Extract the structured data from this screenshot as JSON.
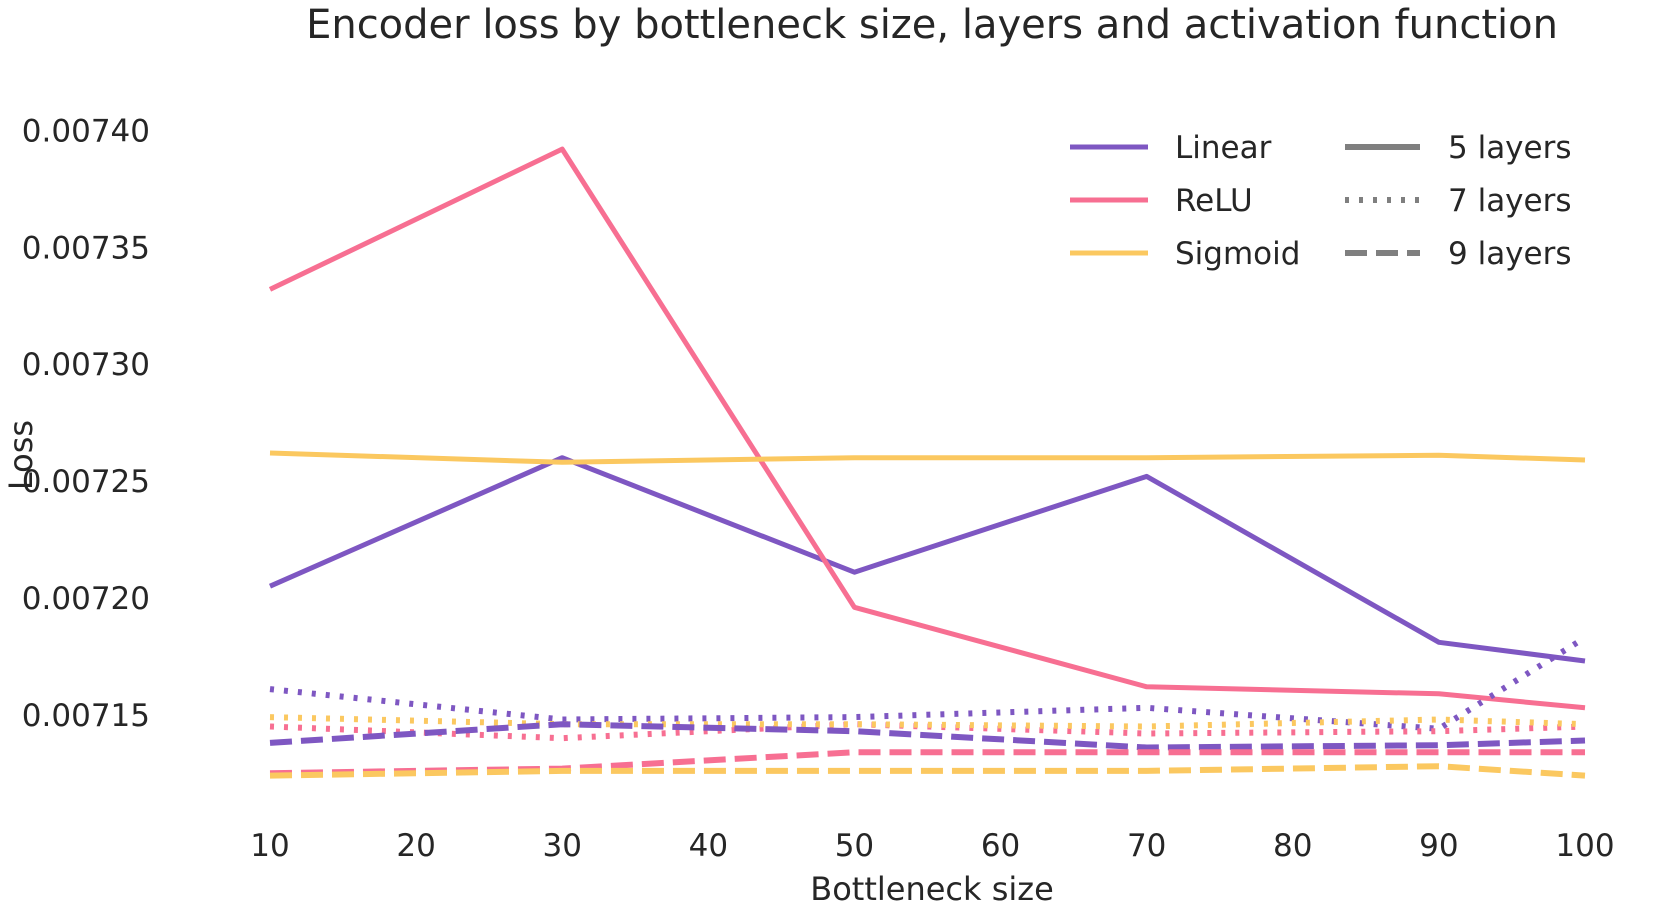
{
  "chart_data": {
    "type": "line",
    "title": "Encoder loss by bottleneck size, layers and activation function",
    "xlabel": "Bottleneck size",
    "ylabel": "Loss",
    "x": [
      10,
      30,
      50,
      70,
      90,
      100
    ],
    "xticks": [
      10,
      20,
      30,
      40,
      50,
      60,
      70,
      80,
      90,
      100
    ],
    "xlim": [
      10,
      100
    ],
    "yticks": [
      0.00715,
      0.0072,
      0.00725,
      0.0073,
      0.00735,
      0.0074
    ],
    "ytick_labels": [
      "0.00715",
      "0.00720",
      "0.00725",
      "0.00730",
      "0.00735",
      "0.00740"
    ],
    "ylim": [
      0.007105,
      0.007413
    ],
    "grid": false,
    "legend_position": "top-right",
    "activation_legend": [
      {
        "label": "Linear",
        "color": "#7e57c2"
      },
      {
        "label": "ReLU",
        "color": "#f76f92"
      },
      {
        "label": "Sigmoid",
        "color": "#fbc860"
      }
    ],
    "layers_legend": [
      {
        "label": "5 layers",
        "style": "solid"
      },
      {
        "label": "7 layers",
        "style": "dotted"
      },
      {
        "label": "9 layers",
        "style": "dashed"
      }
    ],
    "series": [
      {
        "activation": "Linear",
        "layers": "5 layers",
        "color": "#7e57c2",
        "style": "solid",
        "values": [
          0.007205,
          0.00726,
          0.007211,
          0.007252,
          0.007181,
          0.007173
        ]
      },
      {
        "activation": "ReLU",
        "layers": "5 layers",
        "color": "#f76f92",
        "style": "solid",
        "values": [
          0.007332,
          0.007392,
          0.007196,
          0.007162,
          0.007159,
          0.007153
        ]
      },
      {
        "activation": "Sigmoid",
        "layers": "5 layers",
        "color": "#fbc860",
        "style": "solid",
        "values": [
          0.007262,
          0.007258,
          0.00726,
          0.00726,
          0.007261,
          0.007259
        ]
      },
      {
        "activation": "Linear",
        "layers": "7 layers",
        "color": "#7e57c2",
        "style": "dotted",
        "values": [
          0.007161,
          0.007148,
          0.007149,
          0.007153,
          0.007144,
          0.007183
        ]
      },
      {
        "activation": "ReLU",
        "layers": "7 layers",
        "color": "#f76f92",
        "style": "dotted",
        "values": [
          0.007145,
          0.00714,
          0.007146,
          0.007142,
          0.007143,
          0.007145
        ]
      },
      {
        "activation": "Sigmoid",
        "layers": "7 layers",
        "color": "#fbc860",
        "style": "dotted",
        "values": [
          0.007149,
          0.007146,
          0.007146,
          0.007145,
          0.007148,
          0.007146
        ]
      },
      {
        "activation": "Linear",
        "layers": "9 layers",
        "color": "#7e57c2",
        "style": "dashed",
        "values": [
          0.007138,
          0.007146,
          0.007143,
          0.007136,
          0.007137,
          0.007139
        ]
      },
      {
        "activation": "ReLU",
        "layers": "9 layers",
        "color": "#f76f92",
        "style": "dashed",
        "values": [
          0.007125,
          0.007127,
          0.007134,
          0.007134,
          0.007134,
          0.007134
        ]
      },
      {
        "activation": "Sigmoid",
        "layers": "9 layers",
        "color": "#fbc860",
        "style": "dashed",
        "values": [
          0.007124,
          0.007126,
          0.007126,
          0.007126,
          0.007128,
          0.007124
        ]
      }
    ]
  }
}
